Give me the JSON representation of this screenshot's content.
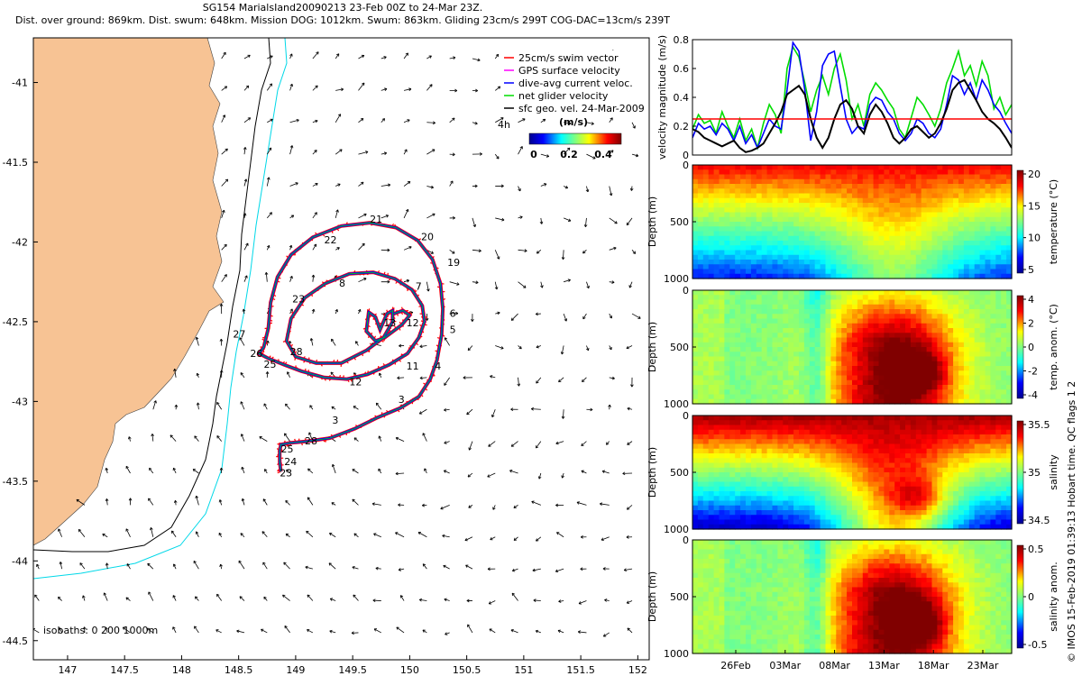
{
  "title": {
    "line1": "SG154 MarialsIand20090213 23-Feb 00Z to 24-Mar 23Z.",
    "line2": "Dist. over ground: 869km. Dist. swum: 648km. Mission DOG: 1012km. Swum: 863km. Gliding 23cm/s 299T COG-DAC=13cm/s 239T"
  },
  "credit": "© IMOS 15-Feb-2019 01:39:13 Hobart time. QC flags 1  2",
  "colors": {
    "land": "#f7c394",
    "isobath_200": "#000000",
    "isobath_1000": "#00d8e8",
    "swim_vector": "#ff0000",
    "gps_velocity": "#ff00ff",
    "dive_avg_current": "#0000ff",
    "net_glider_velocity": "#00dd00",
    "surface_geo_velocity": "#000000"
  },
  "chart_data": [
    {
      "type": "line",
      "panel": "map",
      "xlim": [
        146.7,
        152.1
      ],
      "ylim": [
        -44.62,
        -40.72
      ],
      "x_ticks": [
        "147",
        "147.5",
        "148",
        "148.5",
        "149",
        "149.5",
        "150",
        "150.5",
        "151",
        "151.5",
        "152"
      ],
      "y_ticks": [
        "-41",
        "-41.5",
        "-42",
        "-42.5",
        "-43",
        "-43.5",
        "-44",
        "-44.5"
      ],
      "isobath_label": "isobaths: 0   200   1000m",
      "legend": [
        {
          "label": "25cm/s swim vector",
          "color": "#ff0000"
        },
        {
          "label": "GPS surface velocity",
          "color": "#ff00ff"
        },
        {
          "label": "dive-avg current veloc.",
          "color": "#0000ff"
        },
        {
          "label": "net glider velocity",
          "color": "#00dd00"
        },
        {
          "label": "sfc geo. vel. 24-Mar-2009",
          "color": "#000000"
        }
      ],
      "legend_placement": "top-right",
      "colorbar": {
        "label": "(m/s)",
        "ticks": [
          "0",
          "0.2",
          "0.4"
        ],
        "corner_label": "4h"
      },
      "track": [
        [
          148.87,
          -43.44
        ],
        [
          148.86,
          -43.38
        ],
        [
          148.86,
          -43.31
        ],
        [
          148.87,
          -43.27
        ],
        [
          148.95,
          -43.26
        ],
        [
          149.1,
          -43.25
        ],
        [
          149.3,
          -43.23
        ],
        [
          149.52,
          -43.17
        ],
        [
          149.72,
          -43.1
        ],
        [
          149.92,
          -43.04
        ],
        [
          150.08,
          -42.97
        ],
        [
          150.18,
          -42.86
        ],
        [
          150.24,
          -42.74
        ],
        [
          150.28,
          -42.58
        ],
        [
          150.29,
          -42.42
        ],
        [
          150.27,
          -42.26
        ],
        [
          150.2,
          -42.11
        ],
        [
          150.07,
          -41.99
        ],
        [
          149.88,
          -41.91
        ],
        [
          149.65,
          -41.88
        ],
        [
          149.4,
          -41.9
        ],
        [
          149.15,
          -41.97
        ],
        [
          148.96,
          -42.08
        ],
        [
          148.84,
          -42.22
        ],
        [
          148.78,
          -42.38
        ],
        [
          148.76,
          -42.54
        ],
        [
          148.72,
          -42.66
        ],
        [
          148.68,
          -42.7
        ],
        [
          148.76,
          -42.73
        ],
        [
          148.9,
          -42.77
        ],
        [
          149.05,
          -42.81
        ],
        [
          149.25,
          -42.85
        ],
        [
          149.45,
          -42.86
        ],
        [
          149.63,
          -42.83
        ],
        [
          149.82,
          -42.77
        ],
        [
          149.98,
          -42.7
        ],
        [
          150.08,
          -42.6
        ],
        [
          150.13,
          -42.5
        ],
        [
          150.11,
          -42.4
        ],
        [
          150.02,
          -42.3
        ],
        [
          149.87,
          -42.23
        ],
        [
          149.68,
          -42.19
        ],
        [
          149.47,
          -42.2
        ],
        [
          149.26,
          -42.26
        ],
        [
          149.08,
          -42.35
        ],
        [
          148.96,
          -42.48
        ],
        [
          148.92,
          -42.62
        ],
        [
          149.0,
          -42.72
        ],
        [
          149.18,
          -42.76
        ],
        [
          149.4,
          -42.76
        ],
        [
          149.62,
          -42.68
        ],
        [
          149.77,
          -42.6
        ],
        [
          149.85,
          -42.5
        ],
        [
          149.85,
          -42.43
        ],
        [
          149.8,
          -42.45
        ],
        [
          149.74,
          -42.55
        ],
        [
          149.7,
          -42.47
        ],
        [
          149.64,
          -42.44
        ],
        [
          149.62,
          -42.56
        ],
        [
          149.7,
          -42.62
        ],
        [
          149.78,
          -42.6
        ],
        [
          149.93,
          -42.52
        ],
        [
          150.0,
          -42.46
        ],
        [
          149.94,
          -42.43
        ],
        [
          149.86,
          -42.45
        ]
      ],
      "track_labels": [
        {
          "text": "23",
          "lon": 148.86,
          "lat": -43.47
        },
        {
          "text": "24",
          "lon": 148.9,
          "lat": -43.4
        },
        {
          "text": "25",
          "lon": 148.87,
          "lat": -43.32
        },
        {
          "text": "28",
          "lon": 149.08,
          "lat": -43.27
        },
        {
          "text": "3",
          "lon": 149.32,
          "lat": -43.14
        },
        {
          "text": "3",
          "lon": 149.9,
          "lat": -43.01
        },
        {
          "text": "4",
          "lon": 150.22,
          "lat": -42.8
        },
        {
          "text": "5",
          "lon": 150.35,
          "lat": -42.57
        },
        {
          "text": "6",
          "lon": 150.35,
          "lat": -42.47
        },
        {
          "text": "7",
          "lon": 150.05,
          "lat": -42.3
        },
        {
          "text": "8",
          "lon": 149.38,
          "lat": -42.28
        },
        {
          "text": "11",
          "lon": 149.97,
          "lat": -42.8
        },
        {
          "text": "12",
          "lon": 149.97,
          "lat": -42.53
        },
        {
          "text": "13",
          "lon": 149.77,
          "lat": -42.53
        },
        {
          "text": "19",
          "lon": 150.33,
          "lat": -42.15
        },
        {
          "text": "20",
          "lon": 150.1,
          "lat": -41.99
        },
        {
          "text": "21",
          "lon": 149.65,
          "lat": -41.88
        },
        {
          "text": "22",
          "lon": 149.25,
          "lat": -42.01
        },
        {
          "text": "23",
          "lon": 148.97,
          "lat": -42.38
        },
        {
          "text": "26",
          "lon": 148.6,
          "lat": -42.72
        },
        {
          "text": "25",
          "lon": 148.72,
          "lat": -42.79
        },
        {
          "text": "27",
          "lon": 148.45,
          "lat": -42.6
        },
        {
          "text": "28",
          "lon": 148.95,
          "lat": -42.71
        },
        {
          "text": "12",
          "lon": 149.47,
          "lat": -42.9
        }
      ]
    },
    {
      "type": "line",
      "panel": "velocity",
      "ylabel": "velocity magnitude (m/s)",
      "ylim": [
        0,
        0.8
      ],
      "y_ticks": [
        "0",
        "0.2",
        "0.4",
        "0.6",
        "0.8"
      ],
      "series": [
        {
          "color": "#00dd00",
          "values": [
            0.18,
            0.28,
            0.22,
            0.24,
            0.15,
            0.3,
            0.2,
            0.12,
            0.25,
            0.1,
            0.18,
            0.05,
            0.22,
            0.35,
            0.28,
            0.15,
            0.6,
            0.75,
            0.68,
            0.5,
            0.3,
            0.45,
            0.55,
            0.42,
            0.6,
            0.7,
            0.52,
            0.25,
            0.35,
            0.2,
            0.42,
            0.5,
            0.45,
            0.38,
            0.32,
            0.18,
            0.12,
            0.26,
            0.4,
            0.35,
            0.28,
            0.2,
            0.32,
            0.5,
            0.6,
            0.72,
            0.55,
            0.62,
            0.48,
            0.65,
            0.55,
            0.32,
            0.4,
            0.28,
            0.35
          ]
        },
        {
          "color": "#0000ff",
          "values": [
            0.12,
            0.22,
            0.18,
            0.2,
            0.14,
            0.22,
            0.18,
            0.1,
            0.2,
            0.08,
            0.14,
            0.05,
            0.15,
            0.25,
            0.2,
            0.18,
            0.45,
            0.78,
            0.72,
            0.45,
            0.1,
            0.3,
            0.62,
            0.7,
            0.72,
            0.48,
            0.25,
            0.15,
            0.2,
            0.18,
            0.35,
            0.4,
            0.38,
            0.3,
            0.25,
            0.15,
            0.1,
            0.15,
            0.25,
            0.22,
            0.15,
            0.12,
            0.18,
            0.35,
            0.55,
            0.52,
            0.42,
            0.5,
            0.38,
            0.52,
            0.45,
            0.35,
            0.3,
            0.22,
            0.15
          ]
        },
        {
          "color": "#000000",
          "values": [
            0.18,
            0.16,
            0.12,
            0.1,
            0.08,
            0.06,
            0.08,
            0.1,
            0.05,
            0.02,
            0.03,
            0.05,
            0.08,
            0.15,
            0.22,
            0.3,
            0.42,
            0.45,
            0.48,
            0.42,
            0.25,
            0.12,
            0.05,
            0.12,
            0.25,
            0.35,
            0.38,
            0.32,
            0.2,
            0.15,
            0.28,
            0.35,
            0.3,
            0.22,
            0.12,
            0.08,
            0.12,
            0.18,
            0.2,
            0.16,
            0.12,
            0.15,
            0.22,
            0.32,
            0.45,
            0.5,
            0.52,
            0.45,
            0.38,
            0.3,
            0.25,
            0.22,
            0.18,
            0.12,
            0.05
          ]
        },
        {
          "color": "#ff0000",
          "values": [
            0.25,
            0.25
          ]
        }
      ]
    },
    {
      "type": "heatmap",
      "panel": "temperature",
      "ylabel": "Depth (m)",
      "colorbar_label": "temperature (°C)",
      "colorbar_ticks": [
        "5",
        "10",
        "15",
        "20"
      ],
      "y_ticks": [
        "0",
        "500",
        "1000"
      ]
    },
    {
      "type": "heatmap",
      "panel": "temp_anom",
      "ylabel": "Depth (m)",
      "colorbar_label": "temp. anom. (°C)",
      "colorbar_ticks": [
        "-4",
        "-2",
        "0",
        "2",
        "4"
      ],
      "y_ticks": [
        "0",
        "500",
        "1000"
      ]
    },
    {
      "type": "heatmap",
      "panel": "salinity",
      "ylabel": "Depth (m)",
      "colorbar_label": "salinity",
      "colorbar_ticks": [
        "34.5",
        "35",
        "35.5"
      ],
      "y_ticks": [
        "0",
        "500",
        "1000"
      ]
    },
    {
      "type": "heatmap",
      "panel": "sal_anom",
      "ylabel": "Depth (m)",
      "colorbar_label": "salinity anom.",
      "colorbar_ticks": [
        "-0.5",
        "0",
        "0.5"
      ],
      "y_ticks": [
        "0",
        "500",
        "1000"
      ],
      "x_ticks": [
        "26Feb",
        "03Mar",
        "08Mar",
        "13Mar",
        "18Mar",
        "23Mar"
      ]
    }
  ]
}
